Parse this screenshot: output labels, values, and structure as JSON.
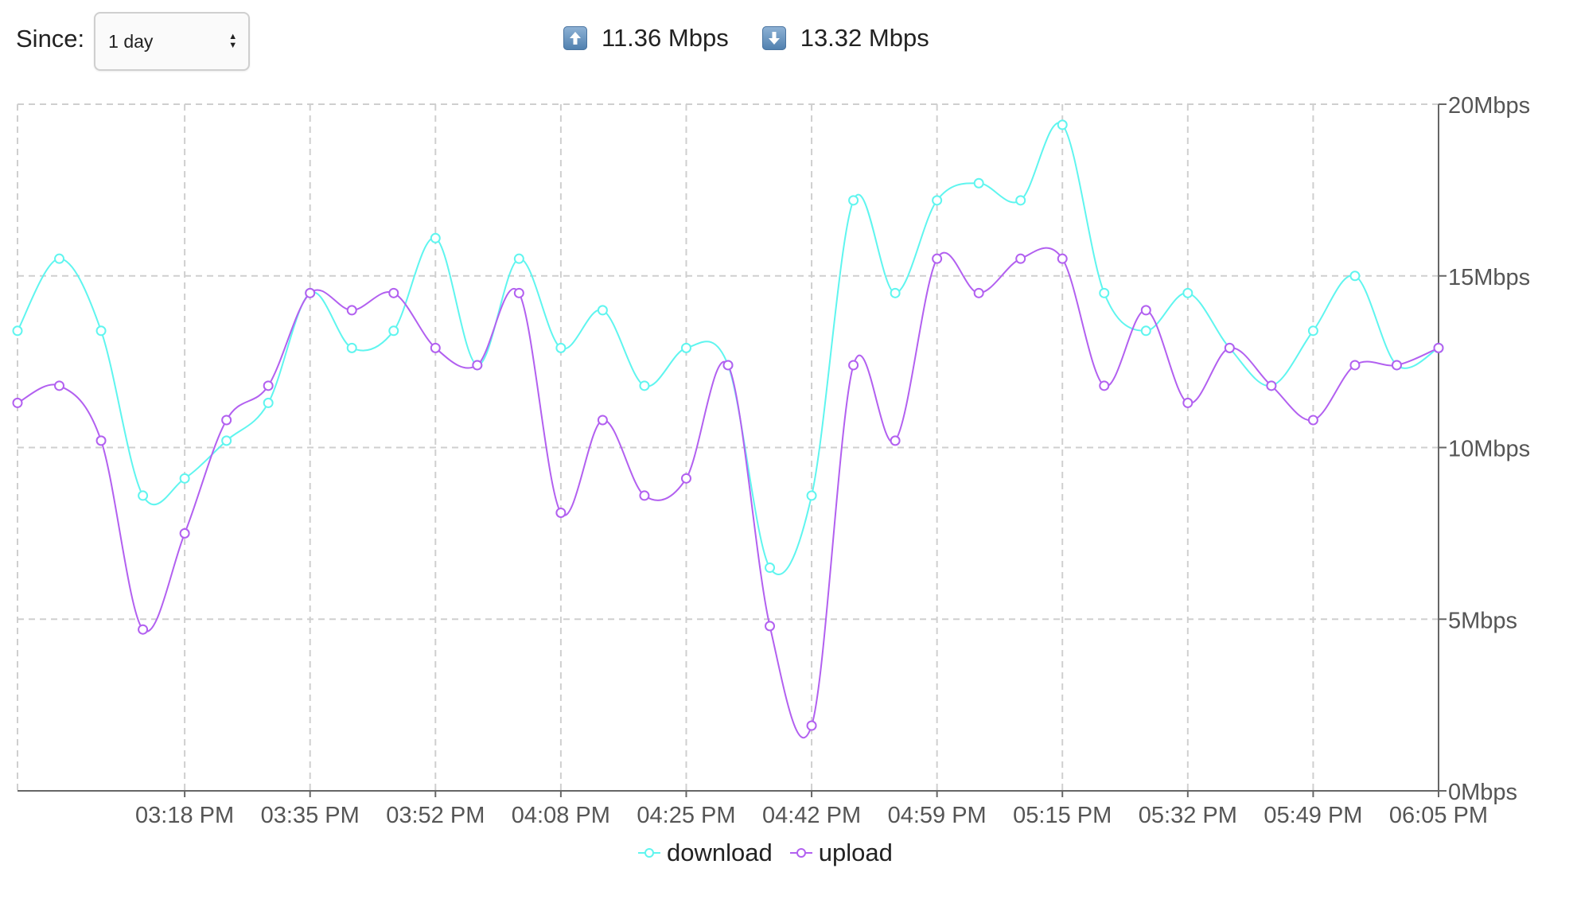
{
  "controls": {
    "since_label": "Since:",
    "since_value": "1 day"
  },
  "speeds": {
    "upload_icon": "arrow-up-icon",
    "upload_text": "11.36 Mbps",
    "download_icon": "arrow-down-icon",
    "download_text": "13.32 Mbps"
  },
  "colors": {
    "download": "#5ff5ef",
    "upload": "#b260f0",
    "grid": "#cfcfcf",
    "axis": "#666666"
  },
  "chart_data": {
    "type": "line",
    "title": "",
    "xlabel": "",
    "ylabel": "",
    "ylim": [
      0,
      20
    ],
    "y_ticks": [
      "0Mbps",
      "5Mbps",
      "10Mbps",
      "15Mbps",
      "20Mbps"
    ],
    "y_tick_values": [
      0,
      5,
      10,
      15,
      20
    ],
    "x_ticks": [
      "03:18 PM",
      "03:35 PM",
      "03:52 PM",
      "04:08 PM",
      "04:25 PM",
      "04:42 PM",
      "04:59 PM",
      "05:15 PM",
      "05:32 PM",
      "05:49 PM",
      "06:05 PM"
    ],
    "x_tick_index": [
      4,
      7,
      10,
      13,
      16,
      19,
      22,
      25,
      28,
      31,
      34
    ],
    "grid": true,
    "legend_position": "bottom-center",
    "point_count": 35,
    "series": [
      {
        "name": "download",
        "values": [
          13.4,
          15.5,
          13.4,
          8.6,
          9.1,
          10.2,
          11.3,
          14.5,
          12.9,
          13.4,
          16.1,
          12.4,
          15.5,
          12.9,
          14.0,
          11.8,
          12.9,
          12.4,
          6.5,
          8.6,
          17.2,
          14.5,
          17.2,
          17.7,
          17.2,
          19.4,
          14.5,
          13.4,
          14.5,
          12.9,
          11.8,
          13.4,
          15.0,
          12.4,
          12.9
        ]
      },
      {
        "name": "upload",
        "values": [
          11.3,
          11.8,
          10.2,
          4.7,
          7.5,
          10.8,
          11.8,
          14.5,
          14.0,
          14.5,
          12.9,
          12.4,
          14.5,
          8.1,
          10.8,
          8.6,
          9.1,
          12.4,
          4.8,
          1.9,
          12.4,
          10.2,
          15.5,
          14.5,
          15.5,
          15.5,
          11.8,
          14.0,
          11.3,
          12.9,
          11.8,
          10.8,
          12.4,
          12.4,
          12.9
        ]
      }
    ]
  }
}
